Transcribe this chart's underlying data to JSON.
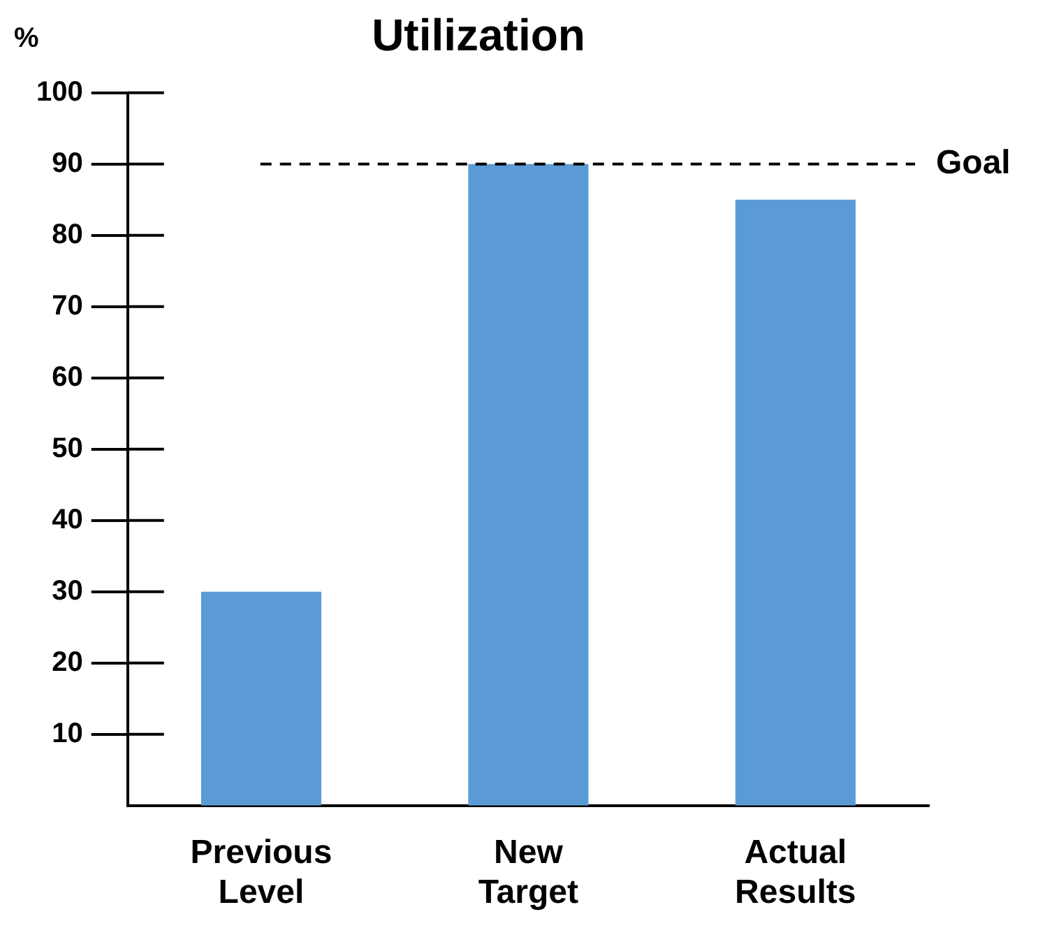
{
  "chart_data": {
    "type": "bar",
    "title": "Utilization",
    "ylabel": "%",
    "categories": [
      "Previous Level",
      "New Target",
      "Actual Results"
    ],
    "values": [
      30,
      90,
      85
    ],
    "color": "#5b9bd5",
    "ylim": [
      0,
      100
    ],
    "yticks": [
      10,
      20,
      30,
      40,
      50,
      60,
      70,
      80,
      90,
      100
    ],
    "grid": false,
    "legend": false,
    "ref_lines": [
      {
        "axis": "y",
        "value": 90,
        "label": "Goal",
        "line_style": "dashed",
        "color": "#000000"
      }
    ]
  }
}
